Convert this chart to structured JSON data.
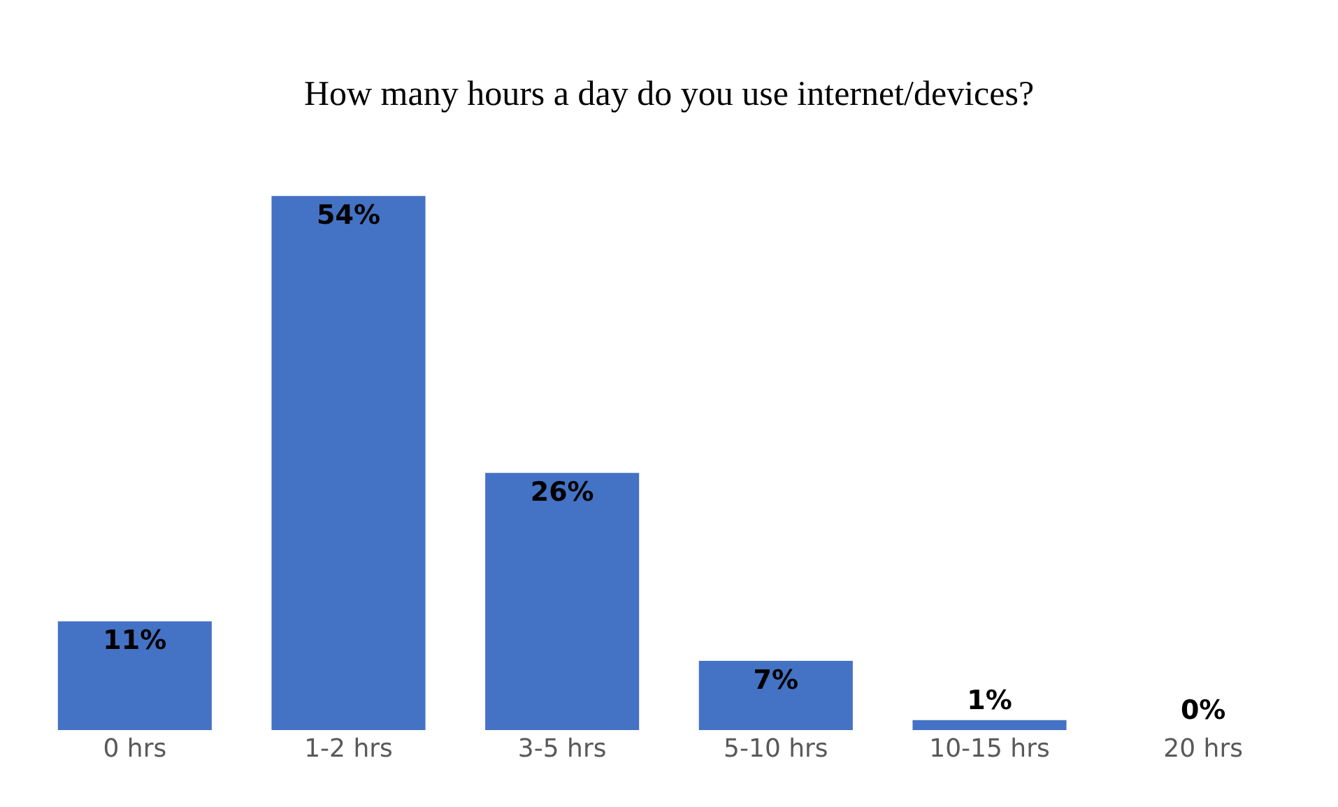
{
  "chart_data": {
    "type": "bar",
    "title": "How many hours a day do you use internet/devices?",
    "categories": [
      "0 hrs",
      "1-2 hrs",
      "3-5 hrs",
      "5-10 hrs",
      "10-15 hrs",
      "20 hrs"
    ],
    "values": [
      11,
      54,
      26,
      7,
      1,
      0
    ],
    "value_labels": [
      "11%",
      "54%",
      "26%",
      "7%",
      "1%",
      "0%"
    ],
    "color": "#4472c4"
  }
}
